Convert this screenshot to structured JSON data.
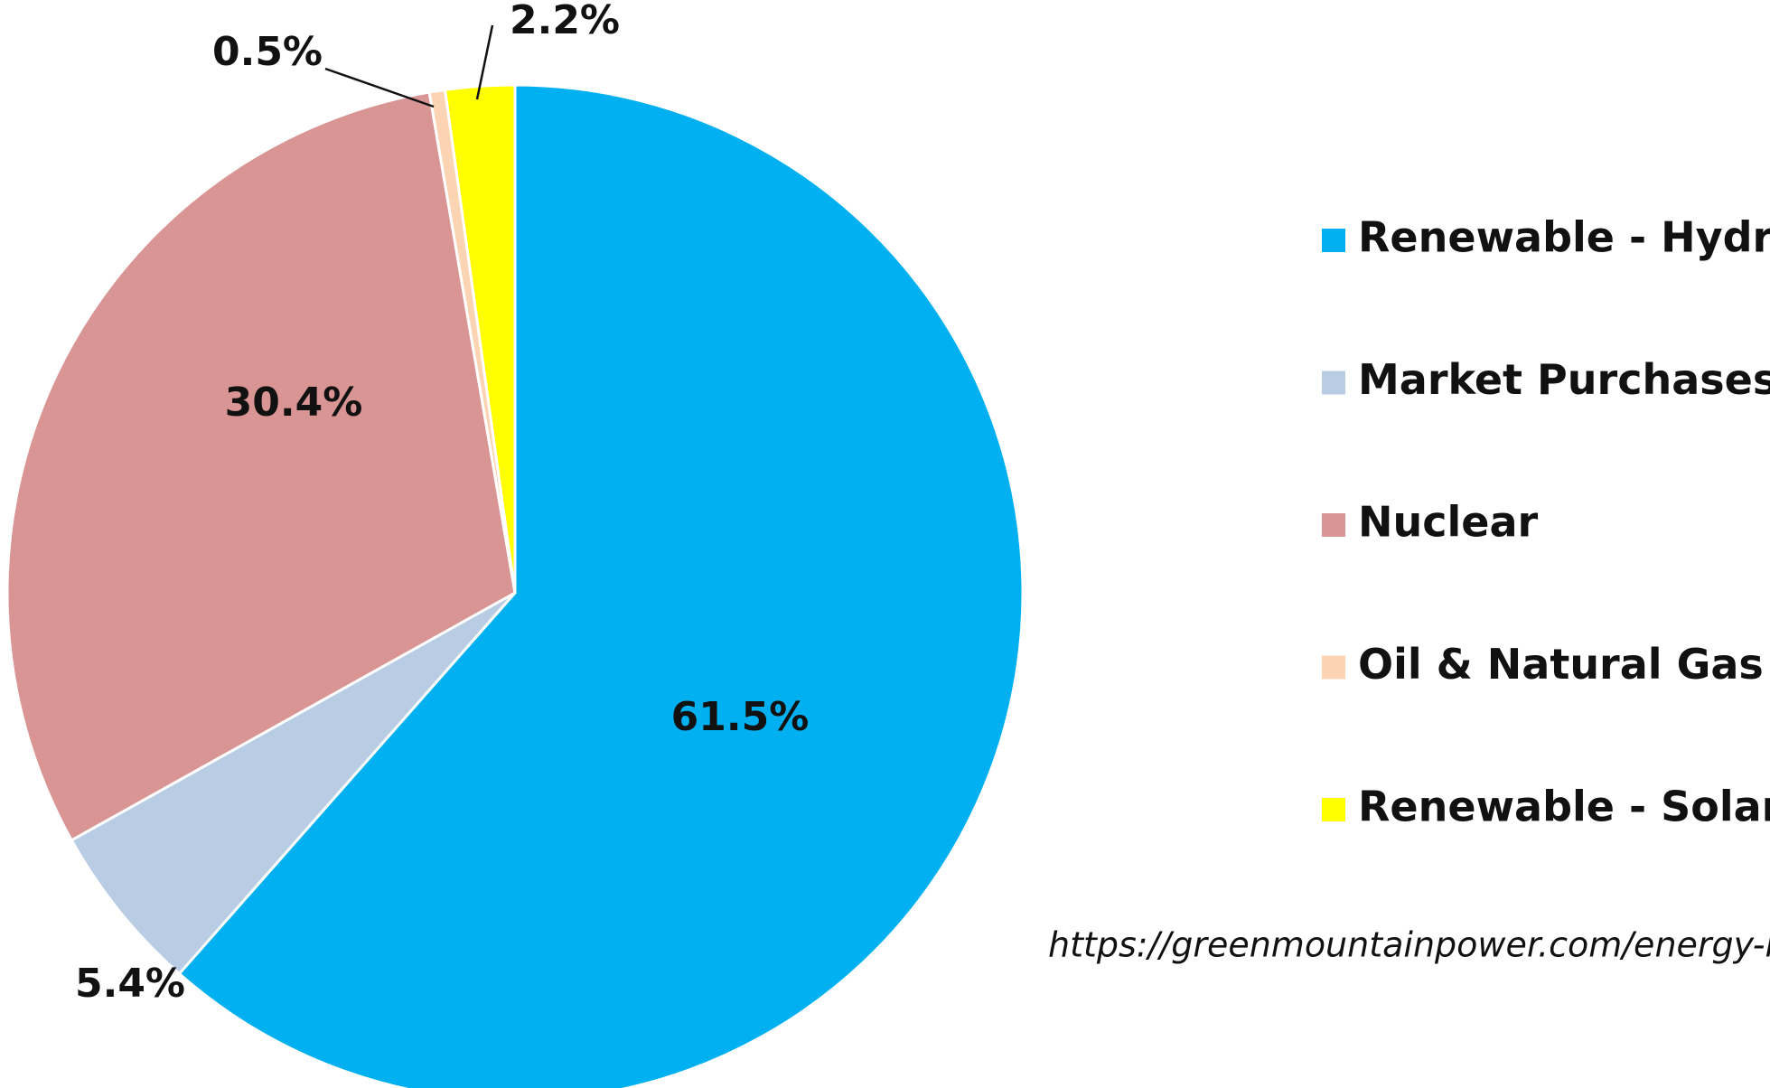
{
  "chart_data": {
    "type": "pie",
    "categories": [
      "Renewable - Hydro",
      "Market Purchases",
      "Nuclear",
      "Oil & Natural Gas",
      "Renewable - Solar"
    ],
    "values": [
      61.5,
      5.4,
      30.4,
      0.5,
      2.2
    ],
    "value_labels": [
      "61.5%",
      "5.4%",
      "30.4%",
      "0.5%",
      "2.2%"
    ],
    "colors": [
      "#00b0f0",
      "#b8cce4",
      "#d99594",
      "#fbd4b4",
      "#ffff00"
    ],
    "legend": "right",
    "source": "https://greenmountainpower.com/energy-mix"
  }
}
